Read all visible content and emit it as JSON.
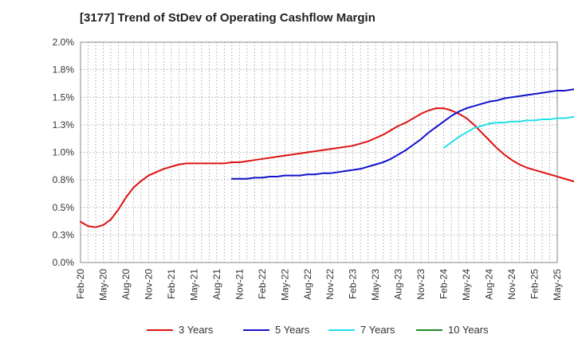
{
  "chart_data": {
    "type": "line",
    "title": "[3177]  Trend of StDev of Operating Cashflow Margin",
    "xlabel": "",
    "ylabel": "",
    "x_ticks": [
      "Feb-20",
      "May-20",
      "Aug-20",
      "Nov-20",
      "Feb-21",
      "May-21",
      "Aug-21",
      "Nov-21",
      "Feb-22",
      "May-22",
      "Aug-22",
      "Nov-22",
      "Feb-23",
      "May-23",
      "Aug-23",
      "Nov-23",
      "Feb-24",
      "May-24",
      "Aug-24",
      "Nov-24",
      "Feb-25",
      "May-25"
    ],
    "y_ticks": [
      "0.0%",
      "0.3%",
      "0.5%",
      "0.8%",
      "1.0%",
      "1.3%",
      "1.5%",
      "1.8%",
      "2.0%"
    ],
    "y_unit": "%",
    "ylim": [
      0,
      2.0
    ],
    "grid": true,
    "legend_position": "bottom",
    "series": [
      {
        "name": "3 Years",
        "color": "#dd1111",
        "points": [
          [
            0,
            0.37
          ],
          [
            1,
            0.33
          ],
          [
            2,
            0.32
          ],
          [
            3,
            0.34
          ],
          [
            4,
            0.39
          ],
          [
            5,
            0.48
          ],
          [
            6,
            0.59
          ],
          [
            7,
            0.68
          ],
          [
            8,
            0.74
          ],
          [
            9,
            0.79
          ],
          [
            10,
            0.82
          ],
          [
            11,
            0.85
          ],
          [
            12,
            0.87
          ],
          [
            13,
            0.89
          ],
          [
            14,
            0.9
          ],
          [
            15,
            0.9
          ],
          [
            16,
            0.9
          ],
          [
            17,
            0.9
          ],
          [
            18,
            0.9
          ],
          [
            19,
            0.9
          ],
          [
            20,
            0.91
          ],
          [
            21,
            0.91
          ],
          [
            22,
            0.92
          ],
          [
            23,
            0.93
          ],
          [
            24,
            0.94
          ],
          [
            25,
            0.95
          ],
          [
            26,
            0.96
          ],
          [
            27,
            0.97
          ],
          [
            28,
            0.98
          ],
          [
            29,
            0.99
          ],
          [
            30,
            1.0
          ],
          [
            31,
            1.01
          ],
          [
            32,
            1.02
          ],
          [
            33,
            1.03
          ],
          [
            34,
            1.04
          ],
          [
            35,
            1.05
          ],
          [
            36,
            1.06
          ],
          [
            37,
            1.08
          ],
          [
            38,
            1.1
          ],
          [
            39,
            1.13
          ],
          [
            40,
            1.16
          ],
          [
            41,
            1.2
          ],
          [
            42,
            1.24
          ],
          [
            43,
            1.27
          ],
          [
            44,
            1.31
          ],
          [
            45,
            1.35
          ],
          [
            46,
            1.38
          ],
          [
            47,
            1.4
          ],
          [
            48,
            1.4
          ],
          [
            49,
            1.38
          ],
          [
            50,
            1.35
          ],
          [
            51,
            1.31
          ],
          [
            52,
            1.25
          ],
          [
            53,
            1.18
          ],
          [
            54,
            1.11
          ],
          [
            55,
            1.04
          ],
          [
            56,
            0.98
          ],
          [
            57,
            0.93
          ],
          [
            58,
            0.89
          ],
          [
            59,
            0.86
          ],
          [
            60,
            0.84
          ],
          [
            61,
            0.82
          ],
          [
            62,
            0.8
          ],
          [
            63,
            0.78
          ],
          [
            64,
            0.76
          ],
          [
            65,
            0.74
          ],
          [
            66,
            0.72
          ],
          [
            67,
            0.7
          ],
          [
            68,
            0.68
          ],
          [
            69,
            0.66
          ],
          [
            70,
            0.64
          ]
        ]
      },
      {
        "name": "5 Years",
        "color": "#1111cc",
        "points": [
          [
            20,
            0.76
          ],
          [
            21,
            0.76
          ],
          [
            22,
            0.76
          ],
          [
            23,
            0.77
          ],
          [
            24,
            0.77
          ],
          [
            25,
            0.78
          ],
          [
            26,
            0.78
          ],
          [
            27,
            0.79
          ],
          [
            28,
            0.79
          ],
          [
            29,
            0.79
          ],
          [
            30,
            0.8
          ],
          [
            31,
            0.8
          ],
          [
            32,
            0.81
          ],
          [
            33,
            0.81
          ],
          [
            34,
            0.82
          ],
          [
            35,
            0.83
          ],
          [
            36,
            0.84
          ],
          [
            37,
            0.85
          ],
          [
            38,
            0.87
          ],
          [
            39,
            0.89
          ],
          [
            40,
            0.91
          ],
          [
            41,
            0.94
          ],
          [
            42,
            0.98
          ],
          [
            43,
            1.02
          ],
          [
            44,
            1.07
          ],
          [
            45,
            1.12
          ],
          [
            46,
            1.18
          ],
          [
            47,
            1.23
          ],
          [
            48,
            1.28
          ],
          [
            49,
            1.33
          ],
          [
            50,
            1.37
          ],
          [
            51,
            1.4
          ],
          [
            52,
            1.42
          ],
          [
            53,
            1.44
          ],
          [
            54,
            1.46
          ],
          [
            55,
            1.47
          ],
          [
            56,
            1.49
          ],
          [
            57,
            1.5
          ],
          [
            58,
            1.51
          ],
          [
            59,
            1.52
          ],
          [
            60,
            1.53
          ],
          [
            61,
            1.54
          ],
          [
            62,
            1.55
          ],
          [
            63,
            1.56
          ],
          [
            64,
            1.56
          ],
          [
            65,
            1.57
          ],
          [
            66,
            1.58
          ],
          [
            67,
            1.58
          ],
          [
            68,
            1.59
          ],
          [
            69,
            1.59
          ],
          [
            70,
            1.59
          ]
        ]
      },
      {
        "name": "7 Years",
        "color": "#22e0e8",
        "points": [
          [
            48,
            1.04
          ],
          [
            49,
            1.09
          ],
          [
            50,
            1.14
          ],
          [
            51,
            1.18
          ],
          [
            52,
            1.22
          ],
          [
            53,
            1.24
          ],
          [
            54,
            1.26
          ],
          [
            55,
            1.27
          ],
          [
            56,
            1.27
          ],
          [
            57,
            1.28
          ],
          [
            58,
            1.28
          ],
          [
            59,
            1.29
          ],
          [
            60,
            1.29
          ],
          [
            61,
            1.3
          ],
          [
            62,
            1.3
          ],
          [
            63,
            1.31
          ],
          [
            64,
            1.31
          ],
          [
            65,
            1.32
          ],
          [
            66,
            1.32
          ],
          [
            67,
            1.33
          ],
          [
            68,
            1.33
          ],
          [
            69,
            1.34
          ],
          [
            70,
            1.35
          ]
        ]
      },
      {
        "name": "10 Years",
        "color": "#228822",
        "points": []
      }
    ]
  }
}
